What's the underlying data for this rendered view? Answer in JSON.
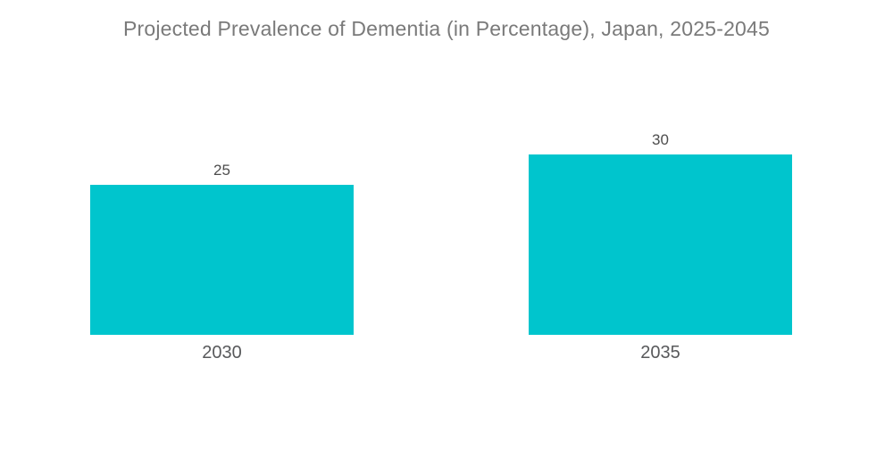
{
  "title": "Projected Prevalence of Dementia (in Percentage), Japan, 2025-2045",
  "colors": {
    "background": "#ffffff",
    "bar": "#00c5cd",
    "title_text": "#7a7a7a",
    "value_label_text": "#4d4d4d",
    "year_label_text": "#58595b"
  },
  "chart_data": {
    "type": "bar",
    "title": "Projected Prevalence of Dementia (in Percentage), Japan, 2025-2045",
    "categories": [
      "2030",
      "2035"
    ],
    "values": [
      25,
      30
    ],
    "value_labels": [
      "25",
      "30"
    ],
    "xlabel": "",
    "ylabel": "",
    "ylim": [
      0,
      30
    ],
    "grid": false,
    "legend": false,
    "axes_visible": false,
    "bar_orientation": "vertical"
  }
}
